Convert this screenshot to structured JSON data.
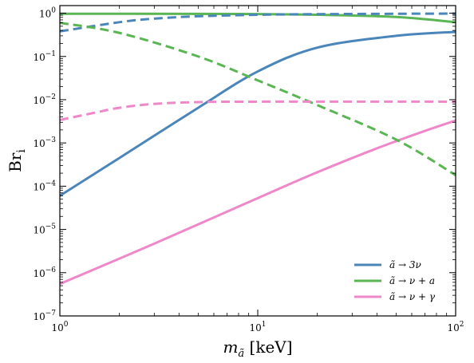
{
  "chart_data": {
    "type": "line",
    "xlabel": "m_ã [keV]",
    "ylabel": "Br_i",
    "x_scale": "log",
    "y_scale": "log",
    "xlim": [
      1,
      100
    ],
    "ylim": [
      1e-07,
      1.5
    ],
    "x_ticks": [
      {
        "value": 1,
        "label": "10^0"
      },
      {
        "value": 10,
        "label": "10^1"
      },
      {
        "value": 100,
        "label": "10^2"
      }
    ],
    "y_ticks": [
      {
        "value": 1e-07,
        "label": "10^-7"
      },
      {
        "value": 1e-06,
        "label": "10^-6"
      },
      {
        "value": 1e-05,
        "label": "10^-5"
      },
      {
        "value": 0.0001,
        "label": "10^-4"
      },
      {
        "value": 0.001,
        "label": "10^-3"
      },
      {
        "value": 0.01,
        "label": "10^-2"
      },
      {
        "value": 0.1,
        "label": "10^-1"
      },
      {
        "value": 1,
        "label": "10^0"
      }
    ],
    "grid": false,
    "legend_position": "lower-right",
    "series": [
      {
        "name": "ã → 3ν",
        "color": "#4a86ba",
        "style": "solid",
        "points": [
          [
            1,
            6e-05
          ],
          [
            2,
            0.00045
          ],
          [
            5,
            0.0065
          ],
          [
            10,
            0.045
          ],
          [
            20,
            0.16
          ],
          [
            50,
            0.3
          ],
          [
            100,
            0.37
          ]
        ]
      },
      {
        "name": "ã → ν + a",
        "color": "#5ab553",
        "style": "solid",
        "points": [
          [
            1,
            0.97
          ],
          [
            5,
            0.965
          ],
          [
            10,
            0.955
          ],
          [
            20,
            0.92
          ],
          [
            50,
            0.82
          ],
          [
            100,
            0.62
          ]
        ]
      },
      {
        "name": "ã → ν + γ",
        "color": "#ee88c8",
        "style": "solid",
        "points": [
          [
            1,
            5.5e-07
          ],
          [
            3,
            4.7e-06
          ],
          [
            10,
            5.3e-05
          ],
          [
            20,
            0.00021
          ],
          [
            40,
            0.00075
          ],
          [
            70,
            0.0019
          ],
          [
            100,
            0.0033
          ]
        ]
      },
      {
        "name": "",
        "color": "#4a86ba",
        "style": "dashed",
        "points": [
          [
            1,
            0.38
          ],
          [
            2,
            0.62
          ],
          [
            3,
            0.75
          ],
          [
            5,
            0.85
          ],
          [
            10,
            0.92
          ],
          [
            20,
            0.95
          ],
          [
            50,
            0.97
          ],
          [
            100,
            0.98
          ]
        ]
      },
      {
        "name": "",
        "color": "#5ab553",
        "style": "dashed",
        "points": [
          [
            1,
            0.6
          ],
          [
            2,
            0.35
          ],
          [
            5,
            0.1
          ],
          [
            10,
            0.028
          ],
          [
            20,
            0.0075
          ],
          [
            50,
            0.0012
          ],
          [
            100,
            0.00018
          ]
        ]
      },
      {
        "name": "",
        "color": "#ee88c8",
        "style": "dashed",
        "points": [
          [
            1,
            0.0034
          ],
          [
            1.5,
            0.005
          ],
          [
            2,
            0.0065
          ],
          [
            3,
            0.008
          ],
          [
            5,
            0.0088
          ],
          [
            10,
            0.009
          ],
          [
            100,
            0.009
          ]
        ]
      }
    ]
  }
}
